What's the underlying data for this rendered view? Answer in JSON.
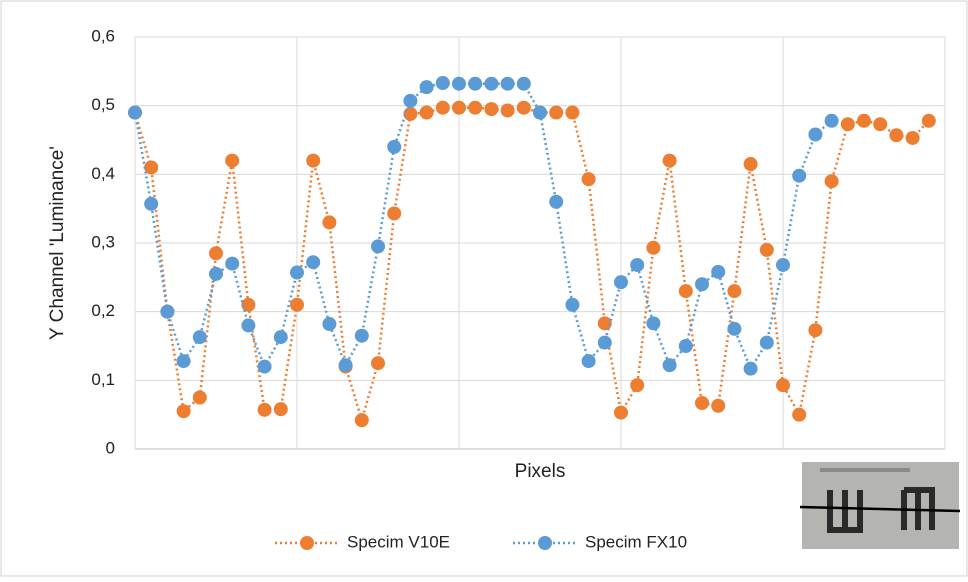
{
  "chart_data": {
    "type": "line",
    "x_label": "Pixels",
    "y_label": "Y Channel 'Luminance'",
    "x": [
      0,
      1,
      2,
      3,
      4,
      5,
      6,
      7,
      8,
      9,
      10,
      11,
      12,
      13,
      14,
      15,
      16,
      17,
      18,
      19,
      20,
      21,
      22,
      23,
      24,
      25,
      26,
      27,
      28,
      29,
      30,
      31,
      32,
      33,
      34,
      35,
      36,
      37,
      38,
      39,
      40,
      41,
      42,
      43,
      44,
      45,
      46,
      47,
      48,
      49
    ],
    "xlim": [
      0,
      50
    ],
    "xticks": [
      0,
      10,
      20,
      30,
      40,
      50
    ],
    "ylim": [
      0,
      0.6
    ],
    "yticks": [
      0,
      {
        "value": 0.1,
        "label": "0,1"
      },
      {
        "value": 0.2,
        "label": "0,2"
      },
      {
        "value": 0.3,
        "label": "0,3"
      },
      {
        "value": 0.4,
        "label": "0,4"
      },
      {
        "value": 0.5,
        "label": "0,5"
      },
      {
        "value": 0.6,
        "label": "0,6"
      }
    ],
    "grid": true,
    "legend": "bottom",
    "series": [
      {
        "name": "Specim V10E",
        "color": "#ed7d31",
        "values": [
          0.49,
          0.41,
          0.2,
          0.055,
          0.075,
          0.285,
          0.42,
          0.21,
          0.057,
          0.058,
          0.21,
          0.42,
          0.33,
          0.12,
          0.042,
          0.125,
          0.343,
          0.488,
          0.49,
          0.497,
          0.497,
          0.497,
          0.495,
          0.493,
          0.497,
          0.49,
          0.49,
          0.49,
          0.393,
          0.183,
          0.053,
          0.093,
          0.293,
          0.42,
          0.23,
          0.067,
          0.063,
          0.23,
          0.415,
          0.29,
          0.093,
          0.05,
          0.173,
          0.39,
          0.473,
          0.478,
          0.473,
          0.457,
          0.453,
          0.478
        ]
      },
      {
        "name": "Specim FX10",
        "color": "#5b9bd5",
        "values": [
          0.49,
          0.357,
          0.2,
          0.128,
          0.163,
          0.255,
          0.27,
          0.18,
          0.12,
          0.163,
          0.257,
          0.272,
          0.182,
          0.122,
          0.165,
          0.295,
          0.44,
          0.507,
          0.527,
          0.533,
          0.532,
          0.532,
          0.532,
          0.532,
          0.532,
          0.49,
          0.36,
          0.21,
          0.128,
          0.155,
          0.243,
          0.268,
          0.183,
          0.122,
          0.15,
          0.24,
          0.258,
          0.175,
          0.117,
          0.155,
          0.268,
          0.398,
          0.458,
          0.478,
          null,
          null,
          null,
          null,
          null,
          null
        ]
      }
    ]
  }
}
